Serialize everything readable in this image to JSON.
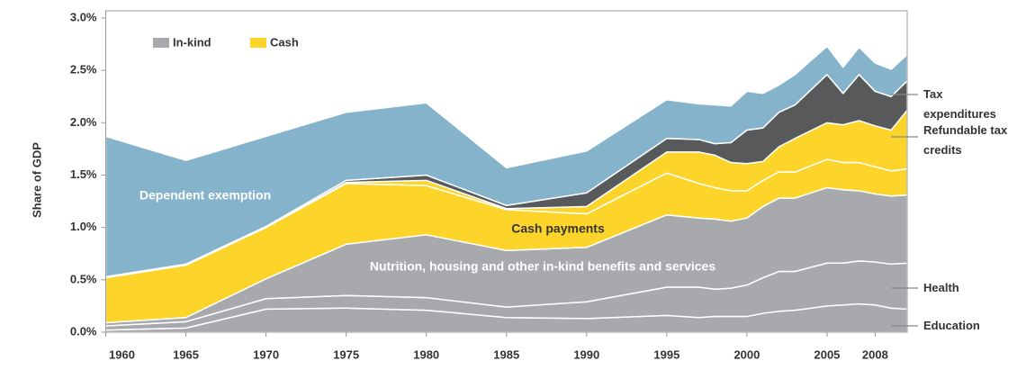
{
  "chart_data": {
    "type": "stacked_area",
    "y_label": "Share of GDP",
    "legend": [
      {
        "name": "In-kind",
        "color": "#a7a9ac"
      },
      {
        "name": "Cash",
        "color": "#fcd42a"
      }
    ],
    "x": [
      1960,
      1965,
      1970,
      1975,
      1980,
      1985,
      1990,
      1995,
      1997,
      1998,
      1999,
      2000,
      2001,
      2002,
      2003,
      2005,
      2006,
      2007,
      2008,
      2009,
      2010
    ],
    "series": [
      {
        "name": "Education",
        "color": "#a7a9ac",
        "values": [
          0.02,
          0.04,
          0.22,
          0.23,
          0.21,
          0.14,
          0.13,
          0.16,
          0.14,
          0.15,
          0.15,
          0.15,
          0.18,
          0.2,
          0.21,
          0.25,
          0.26,
          0.27,
          0.26,
          0.23,
          0.22
        ]
      },
      {
        "name": "Health",
        "color": "#a7a9ac",
        "values": [
          0.04,
          0.06,
          0.1,
          0.12,
          0.12,
          0.1,
          0.16,
          0.27,
          0.29,
          0.26,
          0.27,
          0.3,
          0.34,
          0.38,
          0.37,
          0.41,
          0.4,
          0.41,
          0.41,
          0.42,
          0.44
        ]
      },
      {
        "name": "Nutrition, housing and other in-kind benefits and services",
        "color": "#a7a9ac",
        "values": [
          0.03,
          0.04,
          0.19,
          0.49,
          0.6,
          0.54,
          0.52,
          0.69,
          0.66,
          0.67,
          0.64,
          0.64,
          0.68,
          0.7,
          0.7,
          0.72,
          0.7,
          0.67,
          0.65,
          0.65,
          0.65
        ]
      },
      {
        "name": "Cash payments",
        "color": "#fcd42a",
        "values": [
          0.43,
          0.5,
          0.49,
          0.58,
          0.47,
          0.39,
          0.32,
          0.4,
          0.33,
          0.3,
          0.29,
          0.26,
          0.25,
          0.25,
          0.25,
          0.27,
          0.26,
          0.27,
          0.26,
          0.24,
          0.25
        ]
      },
      {
        "name": "Refundable tax credits",
        "color": "#fcd42a",
        "values": [
          0,
          0,
          0,
          0.01,
          0.05,
          0.01,
          0.07,
          0.2,
          0.3,
          0.31,
          0.27,
          0.26,
          0.18,
          0.24,
          0.32,
          0.35,
          0.36,
          0.4,
          0.39,
          0.39,
          0.56
        ]
      },
      {
        "name": "Tax expenditures",
        "color": "#58595b",
        "values": [
          0.01,
          0.01,
          0.01,
          0.02,
          0.05,
          0.03,
          0.13,
          0.13,
          0.12,
          0.11,
          0.19,
          0.32,
          0.32,
          0.33,
          0.32,
          0.46,
          0.3,
          0.44,
          0.33,
          0.32,
          0.28
        ]
      },
      {
        "name": "Dependent exemption",
        "color": "#85b3cb",
        "values": [
          1.34,
          0.99,
          0.86,
          0.65,
          0.69,
          0.36,
          0.4,
          0.37,
          0.34,
          0.37,
          0.35,
          0.37,
          0.33,
          0.26,
          0.29,
          0.27,
          0.25,
          0.26,
          0.27,
          0.26,
          0.25
        ]
      }
    ],
    "xlim": [
      1960,
      2010
    ],
    "xticks": [
      1960,
      1965,
      1970,
      1975,
      1980,
      1985,
      1990,
      1995,
      2000,
      2005,
      2008
    ],
    "ylim": [
      0,
      3
    ],
    "yticks": [
      {
        "value": 0,
        "label": "0.0%"
      },
      {
        "value": 0.5,
        "label": "0.5%"
      },
      {
        "value": 1,
        "label": "1.0%"
      },
      {
        "value": 1.5,
        "label": "1.5%"
      },
      {
        "value": 2,
        "label": "2.0%"
      },
      {
        "value": 2.5,
        "label": "2.5%"
      },
      {
        "value": 3,
        "label": "3.0%"
      }
    ]
  }
}
